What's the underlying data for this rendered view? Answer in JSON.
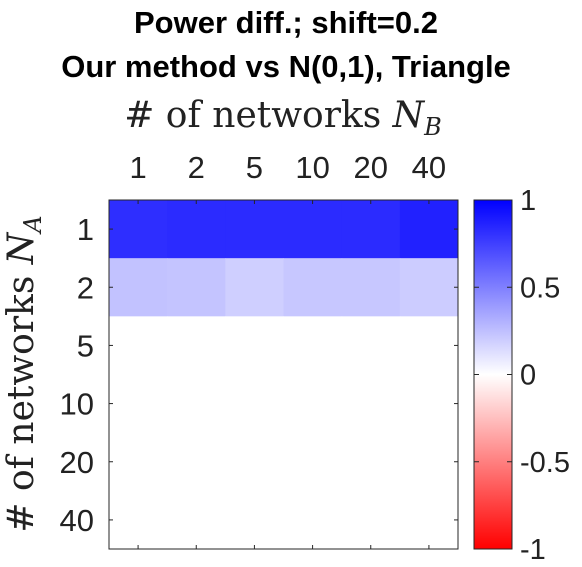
{
  "chart_data": {
    "type": "heatmap",
    "title_line1": "Power diff.; shift=0.2",
    "title_line2": "Our method vs N(0,1), Triangle",
    "xlabel_text": "# of networks ",
    "xlabel_symbol": "N",
    "xlabel_sub": "B",
    "ylabel_text": "# of networks ",
    "ylabel_symbol": "N",
    "ylabel_sub": "A",
    "x_categories": [
      "1",
      "2",
      "5",
      "10",
      "20",
      "40"
    ],
    "y_categories": [
      "1",
      "2",
      "5",
      "10",
      "20",
      "40"
    ],
    "values": [
      [
        0.82,
        0.83,
        0.83,
        0.83,
        0.83,
        0.87
      ],
      [
        0.24,
        0.23,
        0.19,
        0.22,
        0.22,
        0.2
      ],
      [
        0.0,
        0.0,
        0.0,
        0.0,
        0.0,
        0.0
      ],
      [
        0.0,
        0.0,
        0.0,
        0.0,
        0.0,
        0.0
      ],
      [
        0.0,
        0.0,
        0.0,
        0.0,
        0.0,
        0.0
      ],
      [
        0.0,
        0.0,
        0.0,
        0.0,
        0.0,
        0.0
      ]
    ],
    "colorbar": {
      "range": [
        -1,
        1
      ],
      "ticks": [
        "1",
        "0.5",
        "0",
        "-0.5",
        "-1"
      ],
      "colors": {
        "negative": "#ff0000",
        "zero": "#ffffff",
        "positive": "#0000ff"
      }
    }
  }
}
